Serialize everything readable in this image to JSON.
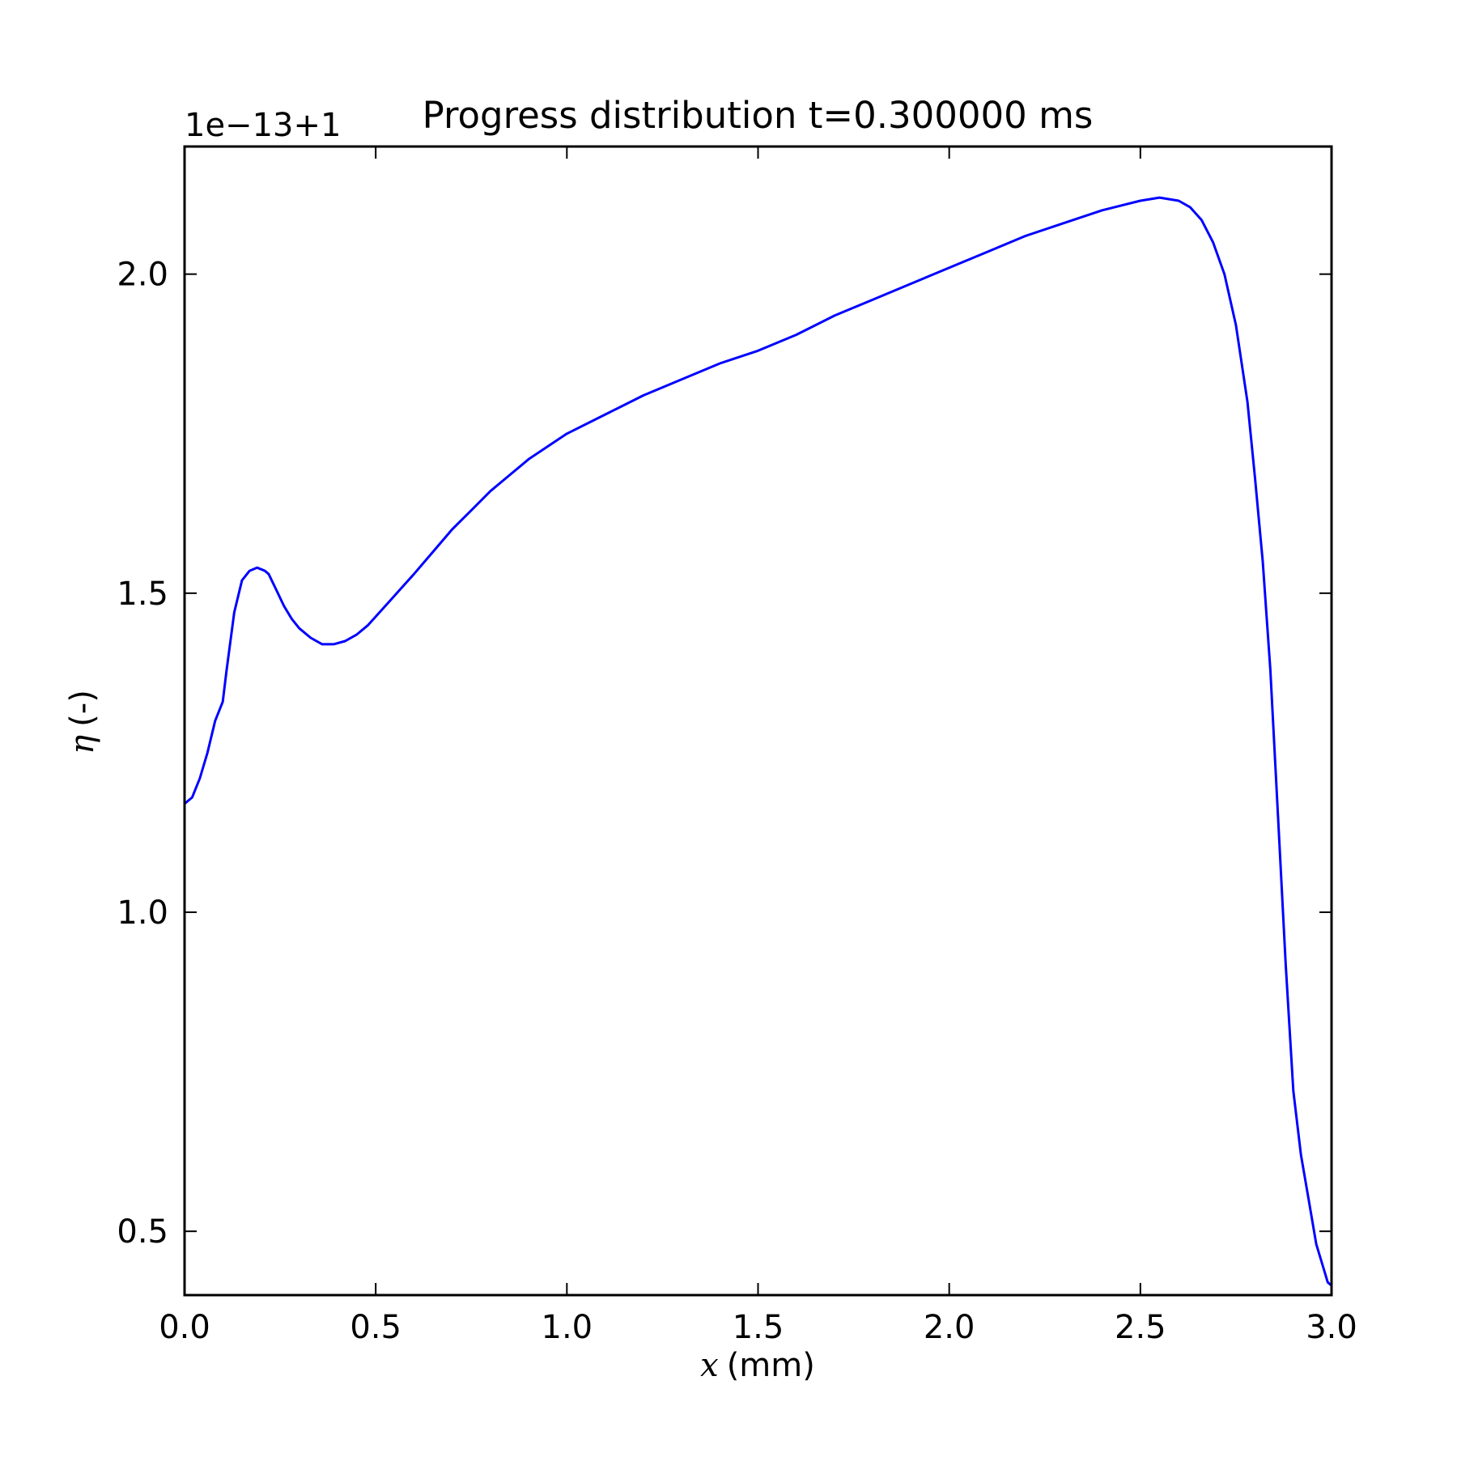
{
  "chart_data": {
    "type": "line",
    "title": "Progress distribution t=0.300000 ms",
    "offset_text": "1e−13+1",
    "xlabel_var": "x",
    "xlabel_unit": " (mm)",
    "ylabel_var": "η",
    "ylabel_unit": " (-)",
    "xlim": [
      0.0,
      3.0
    ],
    "ylim": [
      0.4,
      2.2
    ],
    "xticks": [
      0.0,
      0.5,
      1.0,
      1.5,
      2.0,
      2.5,
      3.0
    ],
    "xtick_labels": [
      "0.0",
      "0.5",
      "1.0",
      "1.5",
      "2.0",
      "2.5",
      "3.0"
    ],
    "yticks": [
      0.5,
      1.0,
      1.5,
      2.0
    ],
    "ytick_labels": [
      "0.5",
      "1.0",
      "1.5",
      "2.0"
    ],
    "grid": false,
    "series": [
      {
        "color": "#0000ff",
        "x": [
          0.0,
          0.02,
          0.04,
          0.06,
          0.08,
          0.1,
          0.11,
          0.13,
          0.15,
          0.17,
          0.19,
          0.21,
          0.22,
          0.24,
          0.26,
          0.28,
          0.3,
          0.33,
          0.36,
          0.39,
          0.42,
          0.45,
          0.48,
          0.51,
          0.54,
          0.57,
          0.6,
          0.65,
          0.7,
          0.75,
          0.8,
          0.85,
          0.9,
          0.95,
          1.0,
          1.1,
          1.2,
          1.3,
          1.4,
          1.5,
          1.6,
          1.7,
          1.8,
          1.9,
          2.0,
          2.1,
          2.2,
          2.3,
          2.4,
          2.5,
          2.55,
          2.6,
          2.63,
          2.66,
          2.69,
          2.72,
          2.75,
          2.78,
          2.8,
          2.82,
          2.84,
          2.86,
          2.88,
          2.9,
          2.92,
          2.94,
          2.96,
          2.98,
          2.99,
          3.0
        ],
        "y": [
          1.17,
          1.18,
          1.21,
          1.25,
          1.3,
          1.33,
          1.38,
          1.47,
          1.52,
          1.535,
          1.54,
          1.535,
          1.53,
          1.505,
          1.48,
          1.46,
          1.445,
          1.43,
          1.42,
          1.42,
          1.425,
          1.435,
          1.45,
          1.47,
          1.49,
          1.51,
          1.53,
          1.565,
          1.6,
          1.63,
          1.66,
          1.685,
          1.71,
          1.73,
          1.75,
          1.78,
          1.81,
          1.835,
          1.86,
          1.88,
          1.905,
          1.935,
          1.96,
          1.985,
          2.01,
          2.035,
          2.06,
          2.08,
          2.1,
          2.115,
          2.12,
          2.115,
          2.105,
          2.085,
          2.05,
          2.0,
          1.92,
          1.8,
          1.68,
          1.55,
          1.38,
          1.15,
          0.92,
          0.72,
          0.62,
          0.55,
          0.48,
          0.44,
          0.42,
          0.415
        ]
      }
    ]
  }
}
